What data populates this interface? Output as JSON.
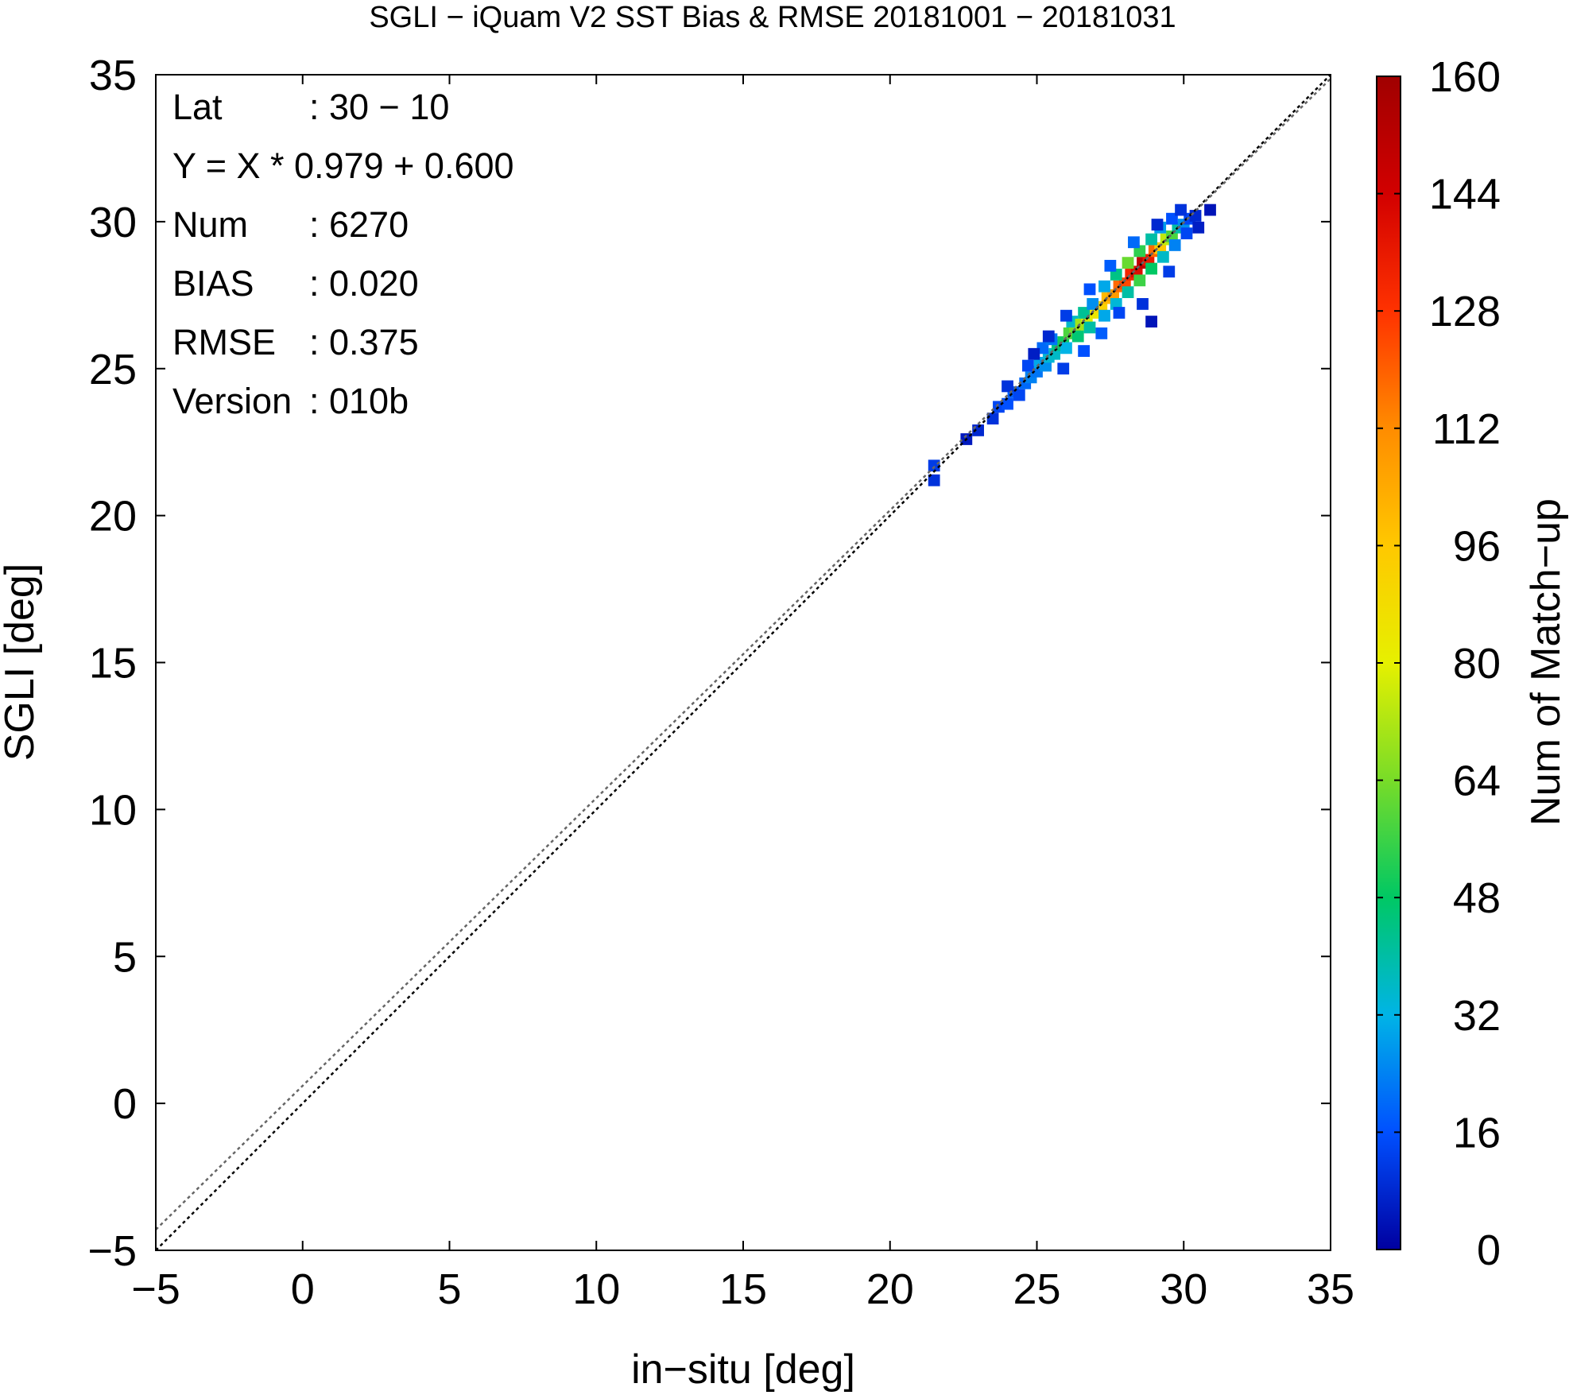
{
  "chart_data": {
    "type": "heatmap",
    "title": "SGLI − iQuam V2 SST Bias & RMSE 20181001 − 20181031",
    "xlabel": "in−situ [deg]",
    "ylabel": "SGLI [deg]",
    "xlim": [
      -5,
      35
    ],
    "ylim": [
      -5,
      35
    ],
    "xticks": [
      "−5",
      "0",
      "5",
      "10",
      "15",
      "20",
      "25",
      "30",
      "35"
    ],
    "yticks": [
      "−5",
      "0",
      "5",
      "10",
      "15",
      "20",
      "25",
      "30",
      "35"
    ],
    "colorbar": {
      "label": "Num of Match−up",
      "range": [
        0,
        160
      ],
      "ticks": [
        "0",
        "16",
        "32",
        "48",
        "64",
        "80",
        "96",
        "112",
        "128",
        "144",
        "160"
      ],
      "colors": [
        "#0000a0",
        "#0050ff",
        "#00b4e6",
        "#00c864",
        "#78dc28",
        "#e6f000",
        "#ffc800",
        "#ff8c00",
        "#ff3200",
        "#d20000",
        "#a00000"
      ]
    },
    "info": [
      {
        "key": "Lat",
        "value": ": 30 − 10"
      },
      {
        "key": "Y = X * 0.979 + 0.600",
        "value": ""
      },
      {
        "key": "Num",
        "value": ": 6270"
      },
      {
        "key": "BIAS",
        "value": ": 0.020"
      },
      {
        "key": "RMSE",
        "value": ": 0.375"
      },
      {
        "key": "Version",
        "value": ": 010b"
      }
    ],
    "lines": [
      {
        "role": "one-to-one",
        "slope": 1.0,
        "intercept": 0.0,
        "color": "#000000",
        "dash": "dotted"
      },
      {
        "role": "regression",
        "slope": 0.979,
        "intercept": 0.6,
        "color": "#666666",
        "dash": "dotted"
      }
    ],
    "bins": [
      [
        21.5,
        21.7,
        12
      ],
      [
        21.5,
        21.2,
        10
      ],
      [
        22.6,
        22.6,
        5
      ],
      [
        23.0,
        22.9,
        8
      ],
      [
        23.5,
        23.3,
        10
      ],
      [
        23.7,
        23.7,
        14
      ],
      [
        24.0,
        23.8,
        16
      ],
      [
        24.2,
        24.2,
        18
      ],
      [
        24.4,
        24.1,
        14
      ],
      [
        24.0,
        24.4,
        10
      ],
      [
        24.6,
        24.5,
        20
      ],
      [
        24.8,
        24.7,
        24
      ],
      [
        25.0,
        24.9,
        22
      ],
      [
        24.7,
        25.1,
        14
      ],
      [
        25.1,
        25.2,
        30
      ],
      [
        25.3,
        25.1,
        26
      ],
      [
        25.4,
        25.4,
        34
      ],
      [
        25.6,
        25.5,
        36
      ],
      [
        25.2,
        25.7,
        20
      ],
      [
        25.7,
        25.8,
        44
      ],
      [
        25.9,
        25.9,
        50
      ],
      [
        26.0,
        25.7,
        32
      ],
      [
        25.5,
        26.0,
        22
      ],
      [
        26.1,
        26.2,
        58
      ],
      [
        26.3,
        26.3,
        64
      ],
      [
        26.4,
        26.1,
        46
      ],
      [
        26.2,
        26.6,
        36
      ],
      [
        26.5,
        26.5,
        70
      ],
      [
        26.7,
        26.7,
        78
      ],
      [
        26.8,
        26.4,
        40
      ],
      [
        26.6,
        26.9,
        42
      ],
      [
        27.0,
        26.9,
        84
      ],
      [
        27.2,
        27.1,
        92
      ],
      [
        27.3,
        26.8,
        30
      ],
      [
        26.9,
        27.2,
        26
      ],
      [
        27.4,
        27.4,
        100
      ],
      [
        27.6,
        27.5,
        108
      ],
      [
        27.7,
        27.2,
        34
      ],
      [
        27.3,
        27.8,
        30
      ],
      [
        27.8,
        27.8,
        118
      ],
      [
        28.0,
        27.9,
        124
      ],
      [
        28.1,
        27.6,
        40
      ],
      [
        27.7,
        28.2,
        44
      ],
      [
        28.2,
        28.2,
        132
      ],
      [
        28.4,
        28.3,
        140
      ],
      [
        28.5,
        28.0,
        56
      ],
      [
        28.1,
        28.6,
        62
      ],
      [
        28.6,
        28.6,
        150
      ],
      [
        28.8,
        28.7,
        136
      ],
      [
        28.9,
        28.4,
        48
      ],
      [
        28.5,
        29.0,
        54
      ],
      [
        29.0,
        29.0,
        118
      ],
      [
        29.2,
        29.1,
        96
      ],
      [
        29.3,
        28.8,
        36
      ],
      [
        28.9,
        29.4,
        40
      ],
      [
        29.4,
        29.4,
        74
      ],
      [
        29.6,
        29.5,
        58
      ],
      [
        29.7,
        29.2,
        24
      ],
      [
        29.2,
        29.8,
        28
      ],
      [
        29.8,
        29.8,
        40
      ],
      [
        30.0,
        29.9,
        26
      ],
      [
        30.1,
        29.6,
        14
      ],
      [
        29.6,
        30.1,
        16
      ],
      [
        30.2,
        30.1,
        14
      ],
      [
        30.4,
        30.2,
        8
      ],
      [
        29.5,
        28.3,
        12
      ],
      [
        27.8,
        26.9,
        14
      ],
      [
        29.1,
        29.9,
        8
      ],
      [
        30.5,
        29.8,
        6
      ],
      [
        26.0,
        26.8,
        12
      ],
      [
        25.4,
        26.1,
        8
      ],
      [
        24.9,
        25.5,
        6
      ],
      [
        28.6,
        27.2,
        10
      ],
      [
        27.2,
        26.2,
        18
      ],
      [
        26.6,
        25.6,
        16
      ],
      [
        25.9,
        25.0,
        12
      ],
      [
        29.9,
        30.4,
        10
      ],
      [
        28.3,
        29.3,
        20
      ],
      [
        27.5,
        28.5,
        18
      ],
      [
        26.8,
        27.7,
        16
      ],
      [
        28.9,
        26.6,
        4
      ],
      [
        30.9,
        30.4,
        4
      ]
    ]
  }
}
